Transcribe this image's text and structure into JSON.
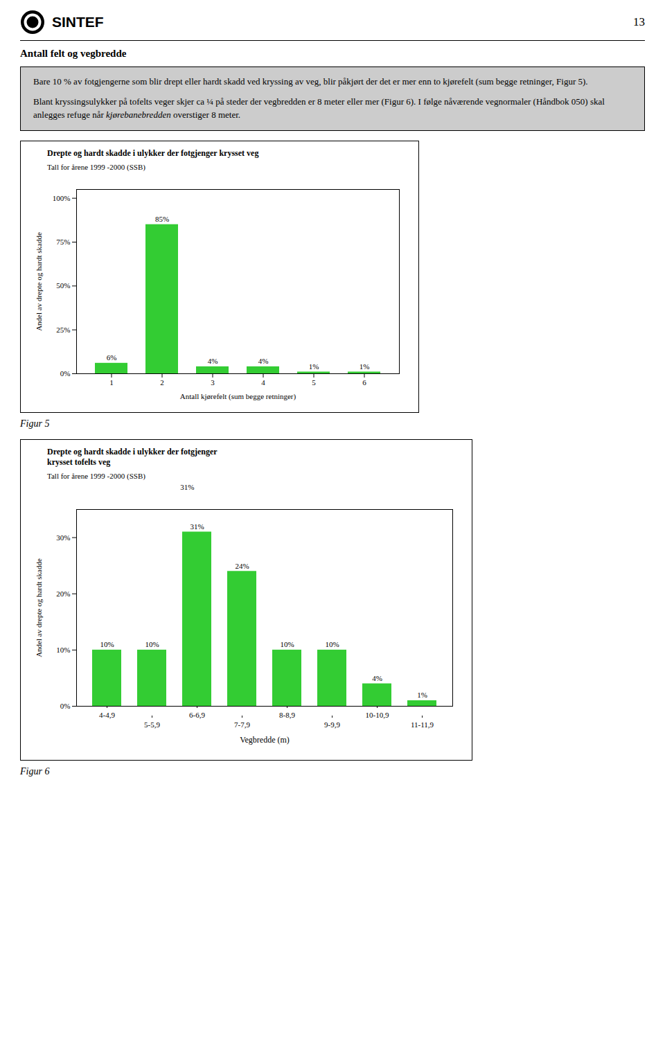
{
  "page": {
    "logo_text": "SINTEF",
    "page_number": "13",
    "section_title": "Antall felt og vegbredde",
    "box_color": "#cccccc",
    "text_box": [
      [
        {
          "text": "Bare 10 % av fotgjengerne som blir drept eller hardt skadd ved kryssing av veg, blir påkjørt der det er mer enn to kjørefelt (sum begge retninger, Figur 5)."
        }
      ],
      [
        {
          "text": "Blant kryssingsulykker på tofelts veger skjer ca ¼ på steder der vegbredden er 8 meter eller mer (Figur 6). I følge nåværende vegnormaler (Håndbok 050) skal anlegges refuge når "
        },
        {
          "text": "kjørebanebredden",
          "italic": true
        },
        {
          "text": " overstiger 8 meter."
        }
      ]
    ]
  },
  "chart_data": [
    {
      "type": "bar",
      "title": "Drepte og hardt skadde i ulykker der fotgjenger krysset veg",
      "subtitle": "Tall for årene 1999 -2000 (SSB)",
      "categories": [
        1,
        2,
        3,
        4,
        5,
        6
      ],
      "values": [
        6,
        85,
        4,
        4,
        1,
        1
      ],
      "value_labels": [
        "6%",
        "85%",
        "4%",
        "4%",
        "1%",
        "1%"
      ],
      "data_labels": true,
      "color": "#33cc33",
      "xlabel": "Antall kjørefelt (sum begge retninger)",
      "ylabel": "Andel av drepte og hardt skadde",
      "ylim": [
        0,
        105
      ],
      "yticks": [
        {
          "value": 0,
          "label": "0%"
        },
        {
          "value": 25,
          "label": "25%"
        },
        {
          "value": 50,
          "label": "50%"
        },
        {
          "value": 75,
          "label": "75%"
        },
        {
          "value": 100,
          "label": "100%"
        }
      ],
      "grid": false,
      "caption": "Figur 5"
    },
    {
      "type": "bar",
      "title": [
        "Drepte og hardt skadde i ulykker der fotgjenger",
        "krysset tofelts veg"
      ],
      "subtitle": "Tall for årene 1999 -2000 (SSB)",
      "categories": [
        "4-4,9",
        "5-5,9",
        "6-6,9",
        "7-7,9",
        "8-8,9",
        "9-9,9",
        "10-10,9",
        "11-11,9"
      ],
      "values": [
        10,
        10,
        31,
        24,
        10,
        10,
        4,
        1
      ],
      "value_labels": [
        "10%",
        "10%",
        "31%",
        "24%",
        "10%",
        "10%",
        "4%",
        "1%"
      ],
      "data_labels": true,
      "color": "#33cc33",
      "xlabel": "Vegbredde (m)",
      "ylabel": "Andel av drepte og hardt skadde",
      "ylim": [
        0,
        35
      ],
      "yticks": [
        {
          "value": 0,
          "label": "0%"
        },
        {
          "value": 10,
          "label": "10%"
        },
        {
          "value": 20,
          "label": "20%"
        },
        {
          "value": 30,
          "label": "30%"
        }
      ],
      "grid": false,
      "annotations": [
        "31%"
      ],
      "caption": "Figur 6"
    }
  ]
}
